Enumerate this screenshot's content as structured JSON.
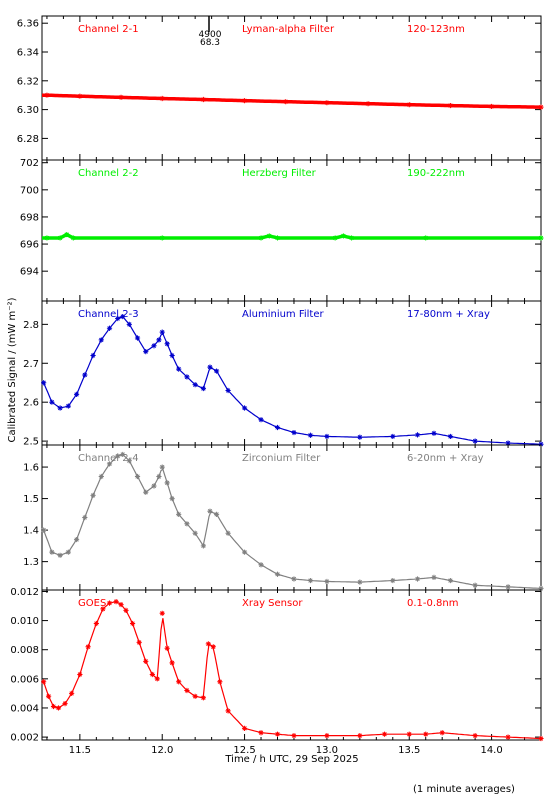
{
  "figure": {
    "y_axis_title": "Calibrated Signal / (mW m⁻²)",
    "x_axis_title": "Time / h UTC, 29 Sep 2025",
    "footnote": "(1 minute averages)",
    "marker_annotation": {
      "line1": "4900",
      "line2": "68.3"
    },
    "x_ticks": [
      "11.5",
      "12.0",
      "12.5",
      "13.0",
      "13.5",
      "14.0"
    ]
  },
  "chart_data": [
    {
      "type": "scatter",
      "channel": "Channel 2-1",
      "filter": "Lyman-alpha Filter",
      "band": "120-123nm",
      "color": "#ff0000",
      "xlim": [
        11.27,
        14.3
      ],
      "ylim": [
        6.265,
        6.365
      ],
      "y_ticks": [
        "6.28",
        "6.30",
        "6.32",
        "6.34",
        "6.36"
      ],
      "x": [
        11.3,
        11.5,
        11.75,
        12.0,
        12.25,
        12.5,
        12.75,
        13.0,
        13.25,
        13.5,
        13.75,
        14.0,
        14.3
      ],
      "y": [
        6.31,
        6.3093,
        6.3085,
        6.3077,
        6.307,
        6.3062,
        6.3055,
        6.3048,
        6.3041,
        6.3034,
        6.3028,
        6.3022,
        6.3017
      ]
    },
    {
      "type": "scatter",
      "channel": "Channel 2-2",
      "filter": "Herzberg Filter",
      "band": "190-222nm",
      "color": "#00ee00",
      "xlim": [
        11.27,
        14.3
      ],
      "ylim": [
        691.8,
        702.2
      ],
      "y_ticks": [
        "694",
        "696",
        "698",
        "700",
        "702"
      ],
      "x": [
        11.3,
        11.38,
        11.42,
        11.46,
        12.0,
        12.6,
        12.65,
        12.7,
        13.05,
        13.1,
        13.15,
        13.6,
        14.3
      ],
      "y": [
        696.45,
        696.45,
        696.7,
        696.45,
        696.45,
        696.45,
        696.6,
        696.45,
        696.45,
        696.6,
        696.45,
        696.45,
        696.45
      ]
    },
    {
      "type": "scatter",
      "channel": "Channel 2-3",
      "filter": "Aluminium Filter",
      "band": "17-80nm + Xray",
      "color": "#0000cc",
      "xlim": [
        11.27,
        14.3
      ],
      "ylim": [
        2.49,
        2.86
      ],
      "y_ticks": [
        "2.5",
        "2.6",
        "2.7",
        "2.8"
      ],
      "x": [
        11.28,
        11.33,
        11.38,
        11.43,
        11.48,
        11.53,
        11.58,
        11.63,
        11.68,
        11.73,
        11.76,
        11.8,
        11.85,
        11.9,
        11.95,
        11.98,
        12.0,
        12.03,
        12.06,
        12.1,
        12.15,
        12.2,
        12.25,
        12.29,
        12.33,
        12.4,
        12.5,
        12.6,
        12.7,
        12.8,
        12.9,
        13.0,
        13.2,
        13.4,
        13.55,
        13.65,
        13.75,
        13.9,
        14.1,
        14.3
      ],
      "y": [
        2.65,
        2.6,
        2.585,
        2.59,
        2.62,
        2.67,
        2.72,
        2.76,
        2.79,
        2.815,
        2.82,
        2.8,
        2.765,
        2.73,
        2.745,
        2.76,
        2.78,
        2.75,
        2.72,
        2.685,
        2.665,
        2.645,
        2.635,
        2.69,
        2.68,
        2.63,
        2.585,
        2.555,
        2.535,
        2.522,
        2.515,
        2.512,
        2.51,
        2.512,
        2.516,
        2.52,
        2.512,
        2.5,
        2.495,
        2.492
      ]
    },
    {
      "type": "scatter",
      "channel": "Channel 2-4",
      "filter": "Zirconium Filter",
      "band": "6-20nm + Xray",
      "color": "#808080",
      "xlim": [
        11.27,
        14.3
      ],
      "ylim": [
        1.21,
        1.67
      ],
      "y_ticks": [
        "1.3",
        "1.4",
        "1.5",
        "1.6"
      ],
      "x": [
        11.28,
        11.33,
        11.38,
        11.43,
        11.48,
        11.53,
        11.58,
        11.63,
        11.68,
        11.73,
        11.76,
        11.8,
        11.85,
        11.9,
        11.95,
        11.98,
        12.0,
        12.03,
        12.06,
        12.1,
        12.15,
        12.2,
        12.25,
        12.29,
        12.33,
        12.4,
        12.5,
        12.6,
        12.7,
        12.8,
        12.9,
        13.0,
        13.2,
        13.4,
        13.55,
        13.65,
        13.75,
        13.9,
        14.1,
        14.3
      ],
      "y": [
        1.4,
        1.33,
        1.32,
        1.33,
        1.37,
        1.44,
        1.51,
        1.57,
        1.61,
        1.635,
        1.64,
        1.62,
        1.57,
        1.52,
        1.54,
        1.57,
        1.6,
        1.55,
        1.5,
        1.45,
        1.42,
        1.39,
        1.35,
        1.46,
        1.45,
        1.39,
        1.33,
        1.29,
        1.26,
        1.245,
        1.24,
        1.237,
        1.235,
        1.24,
        1.245,
        1.25,
        1.24,
        1.225,
        1.22,
        1.215
      ]
    },
    {
      "type": "scatter",
      "channel": "GOES",
      "filter": "Xray Sensor",
      "band": "0.1-0.8nm",
      "color": "#ff0000",
      "xlim": [
        11.27,
        14.3
      ],
      "ylim": [
        0.0018,
        0.0121
      ],
      "y_ticks": [
        "0.002",
        "0.004",
        "0.006",
        "0.008",
        "0.010",
        "0.012"
      ],
      "x": [
        11.28,
        11.31,
        11.34,
        11.37,
        11.41,
        11.45,
        11.5,
        11.55,
        11.6,
        11.64,
        11.68,
        11.72,
        11.75,
        11.78,
        11.82,
        11.86,
        11.9,
        11.94,
        11.97,
        12.0,
        12.03,
        12.06,
        12.1,
        12.15,
        12.2,
        12.25,
        12.28,
        12.31,
        12.35,
        12.4,
        12.5,
        12.6,
        12.7,
        12.8,
        13.0,
        13.2,
        13.35,
        13.5,
        13.6,
        13.7,
        13.9,
        14.1,
        14.3
      ],
      "y": [
        0.0058,
        0.0048,
        0.0041,
        0.004,
        0.0043,
        0.005,
        0.0063,
        0.0082,
        0.0098,
        0.0108,
        0.0112,
        0.0113,
        0.0111,
        0.0107,
        0.0098,
        0.0085,
        0.0072,
        0.0063,
        0.006,
        0.0105,
        0.0081,
        0.0071,
        0.0058,
        0.0052,
        0.0048,
        0.0047,
        0.0084,
        0.0082,
        0.0058,
        0.0038,
        0.0026,
        0.0023,
        0.0022,
        0.0021,
        0.0021,
        0.0021,
        0.0022,
        0.0022,
        0.0022,
        0.0023,
        0.0021,
        0.002,
        0.0019
      ]
    }
  ]
}
